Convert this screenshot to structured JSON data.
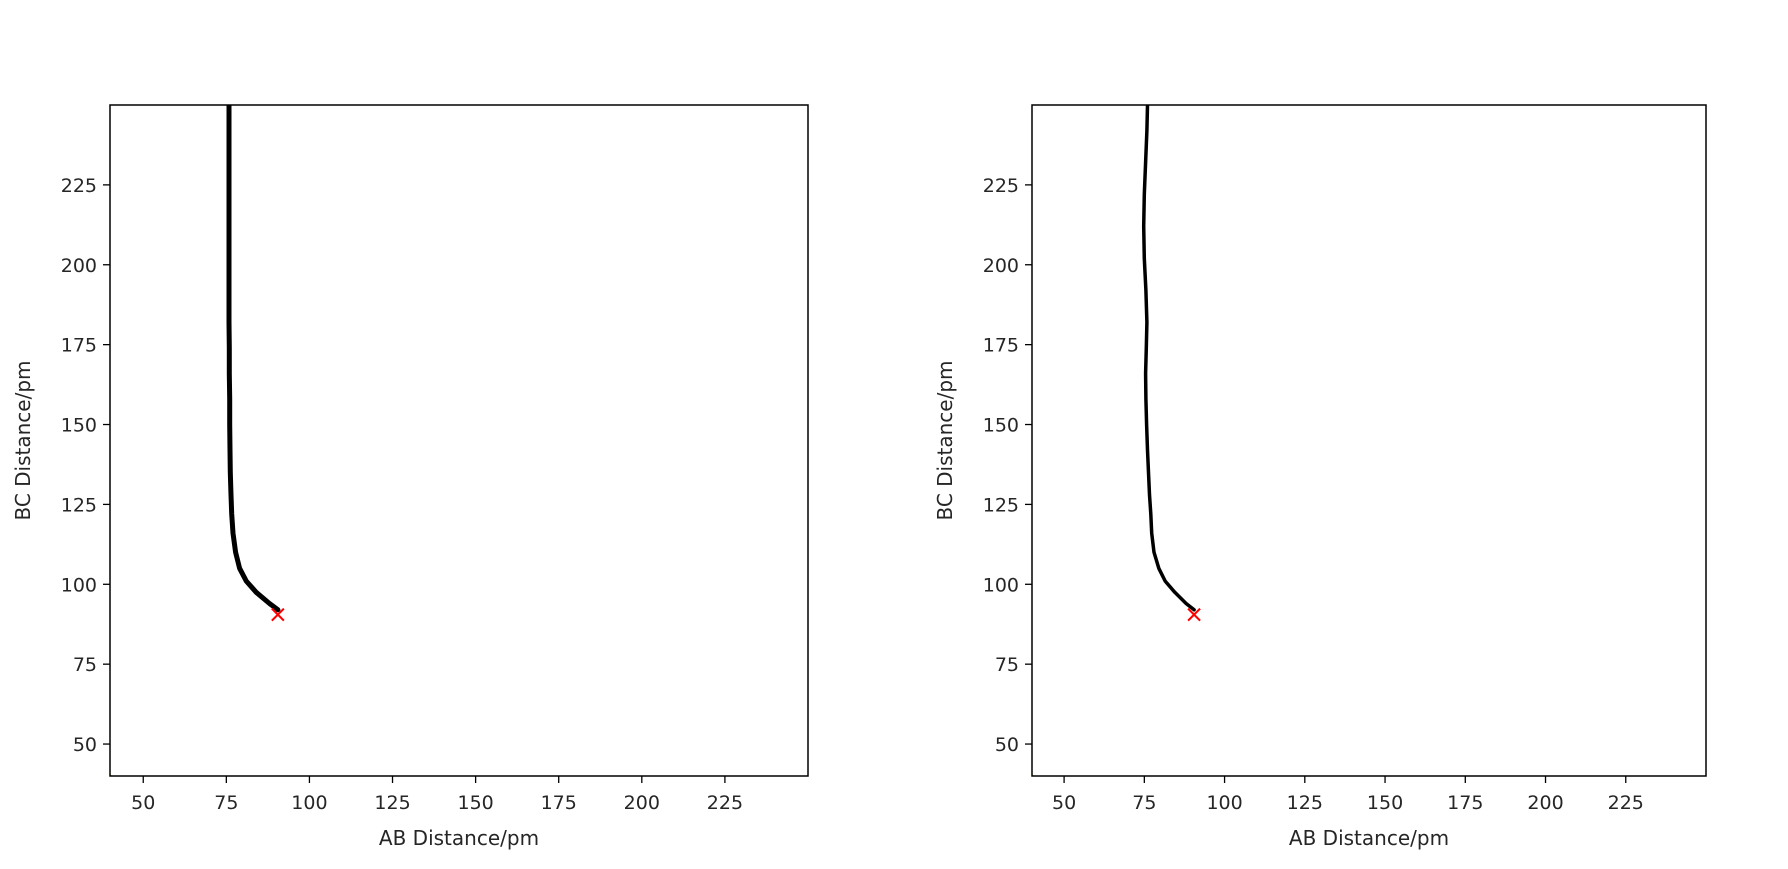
{
  "chart_data": [
    {
      "type": "contour",
      "title": "",
      "xlabel": "AB Distance/pm",
      "ylabel": "BC Distance/pm",
      "xlim": [
        40,
        250
      ],
      "ylim": [
        40,
        250
      ],
      "xticks": [
        50,
        75,
        100,
        125,
        150,
        175,
        200,
        225
      ],
      "yticks": [
        50,
        75,
        100,
        125,
        150,
        175,
        200,
        225
      ],
      "colormap": "viridis",
      "contour_levels": 40,
      "saddle_point": {
        "x": 90.5,
        "y": 90.5,
        "marker": "x",
        "color": "#ff0000"
      },
      "trajectory": {
        "color": "#000000",
        "style": "thick",
        "x": [
          90.5,
          88,
          84,
          81,
          79,
          77.8,
          77,
          76.6,
          76.4,
          76.2,
          76.1,
          76,
          76,
          75.9,
          75.9,
          75.8,
          75.8,
          75.8,
          75.8,
          75.8,
          75.8
        ],
        "y": [
          92,
          94,
          97.5,
          101,
          105,
          110,
          116,
          122,
          128,
          135,
          142,
          150,
          158,
          166,
          174,
          182,
          192,
          205,
          220,
          235,
          250
        ]
      }
    },
    {
      "type": "contour",
      "title": "",
      "xlabel": "AB Distance/pm",
      "ylabel": "BC Distance/pm",
      "xlim": [
        40,
        250
      ],
      "ylim": [
        40,
        250
      ],
      "xticks": [
        50,
        75,
        100,
        125,
        150,
        175,
        200,
        225
      ],
      "yticks": [
        50,
        75,
        100,
        125,
        150,
        175,
        200,
        225
      ],
      "colormap": "viridis",
      "contour_levels": 40,
      "saddle_point": {
        "x": 90.5,
        "y": 90.5,
        "marker": "x",
        "color": "#ff0000"
      },
      "trajectory": {
        "color": "#000000",
        "style": "thin-oscillating",
        "x": [
          90.5,
          88,
          84.5,
          81.5,
          79.5,
          78,
          77.3,
          77,
          76.6,
          76.3,
          76,
          75.7,
          75.5,
          75.4,
          75.6,
          75.8,
          75.5,
          75,
          74.8,
          75,
          75.4,
          75.8,
          76
        ],
        "y": [
          92,
          94,
          97.5,
          101,
          105,
          110,
          116,
          122,
          128,
          135,
          142,
          150,
          158,
          166,
          174,
          182,
          192,
          202,
          212,
          222,
          232,
          242,
          250
        ]
      }
    }
  ]
}
